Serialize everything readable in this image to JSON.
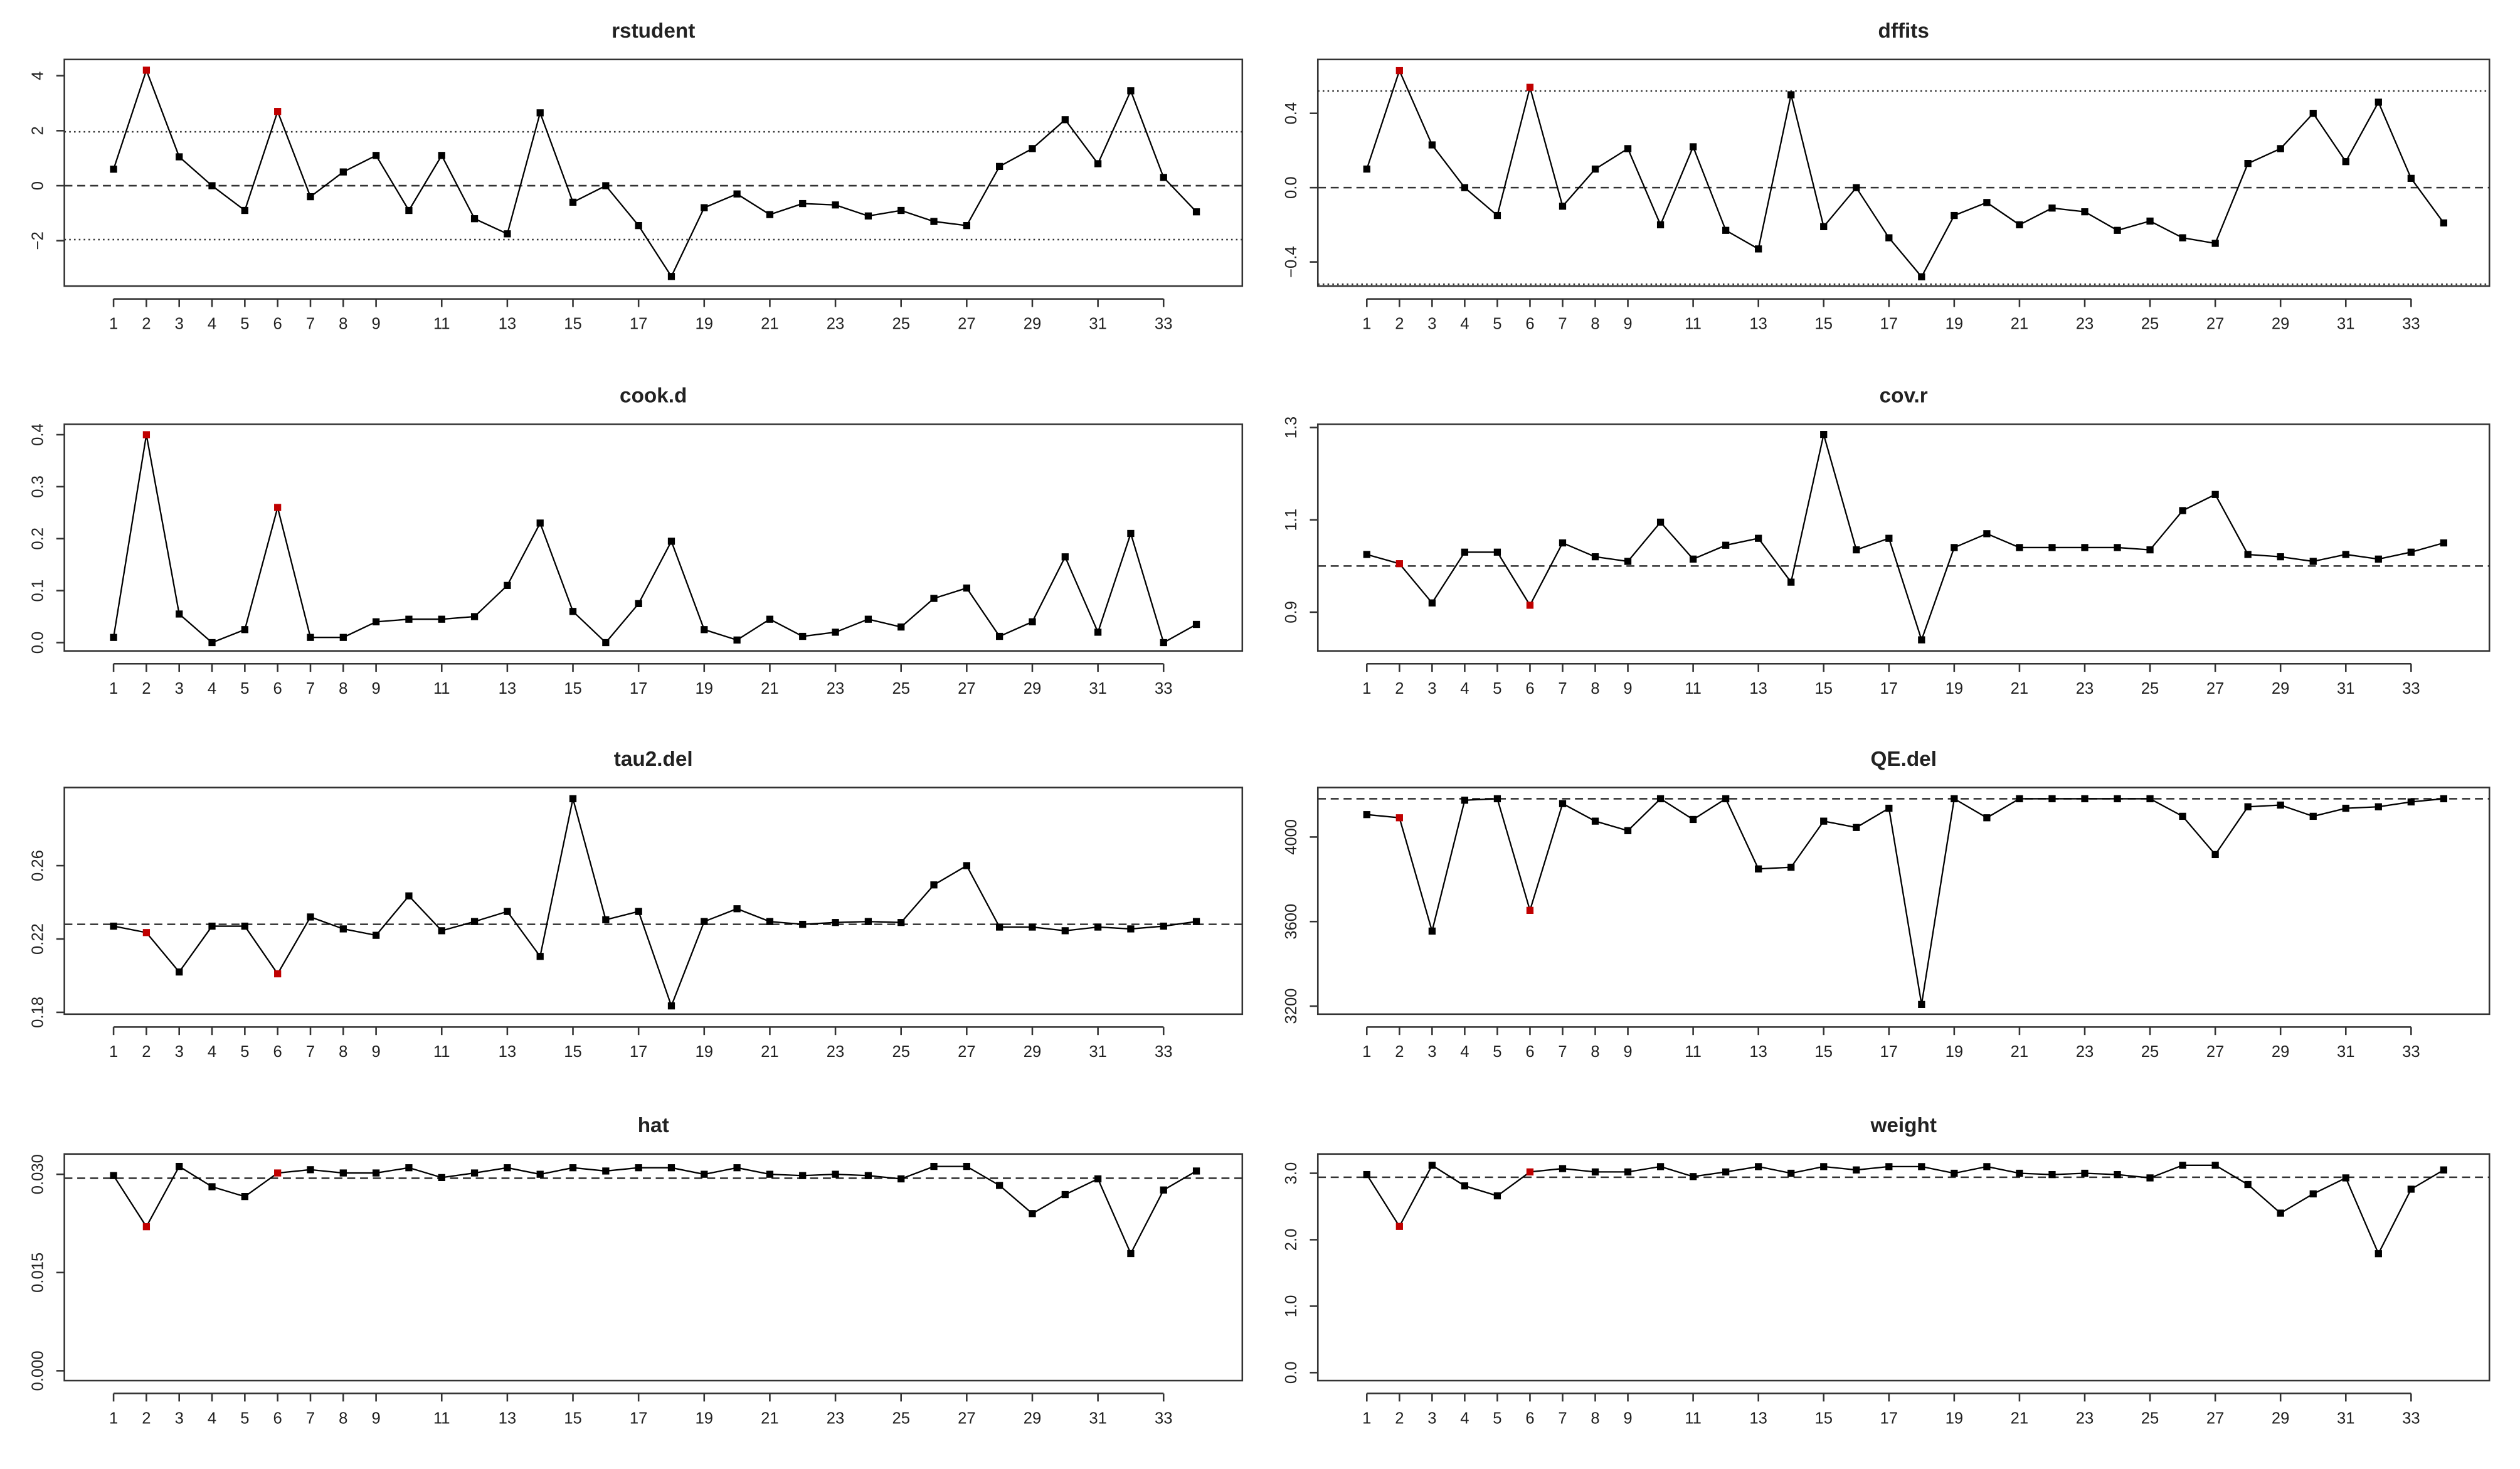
{
  "chart_data": [
    {
      "type": "line",
      "title": "rstudent",
      "color": "#000000",
      "highlight_x": [
        2,
        6
      ],
      "highlight_color": "#c00000",
      "x": [
        1,
        2,
        3,
        4,
        5,
        6,
        7,
        8,
        9,
        10,
        11,
        12,
        13,
        14,
        15,
        16,
        17,
        18,
        19,
        20,
        21,
        22,
        23,
        24,
        25,
        26,
        27,
        28,
        29,
        30,
        31,
        32,
        33,
        34
      ],
      "values": [
        0.6,
        4.2,
        1.05,
        0.0,
        -0.9,
        2.7,
        -0.4,
        0.5,
        1.1,
        -0.9,
        1.1,
        -1.2,
        -1.75,
        2.65,
        -0.6,
        0.0,
        -1.45,
        -3.3,
        -0.8,
        -0.3,
        -1.05,
        -0.65,
        -0.7,
        -1.1,
        -0.9,
        -1.3,
        -1.45,
        0.7,
        1.35,
        2.4,
        0.8,
        3.45,
        0.3,
        -0.95
      ],
      "xlim": [
        -0.5,
        35.4
      ],
      "xticks": [
        1,
        2,
        3,
        4,
        5,
        6,
        7,
        8,
        9,
        11,
        13,
        15,
        17,
        19,
        21,
        23,
        25,
        27,
        29,
        31,
        33
      ],
      "ylim": [
        -3.65,
        4.59
      ],
      "yticks": [
        {
          "value": -2,
          "label": "−2"
        },
        0,
        2,
        4
      ],
      "hlines": [
        {
          "value": 0,
          "style": "dashed"
        },
        {
          "value": 1.96,
          "style": "dotted"
        },
        {
          "value": -1.96,
          "style": "dotted"
        }
      ]
    },
    {
      "type": "line",
      "title": "dffits",
      "color": "#000000",
      "highlight_x": [
        2,
        6
      ],
      "highlight_color": "#c00000",
      "x": [
        1,
        2,
        3,
        4,
        5,
        6,
        7,
        8,
        9,
        10,
        11,
        12,
        13,
        14,
        15,
        16,
        17,
        18,
        19,
        20,
        21,
        22,
        23,
        24,
        25,
        26,
        27,
        28,
        29,
        30,
        31,
        32,
        33,
        34
      ],
      "values": [
        0.1,
        0.63,
        0.23,
        0.0,
        -0.15,
        0.54,
        -0.1,
        0.1,
        0.21,
        -0.2,
        0.22,
        -0.23,
        -0.33,
        0.5,
        -0.21,
        0.0,
        -0.27,
        -0.48,
        -0.15,
        -0.08,
        -0.2,
        -0.11,
        -0.13,
        -0.23,
        -0.18,
        -0.27,
        -0.3,
        0.13,
        0.21,
        0.4,
        0.14,
        0.46,
        0.05,
        -0.19
      ],
      "xlim": [
        -0.5,
        35.4
      ],
      "xticks": [
        1,
        2,
        3,
        4,
        5,
        6,
        7,
        8,
        9,
        11,
        13,
        15,
        17,
        19,
        21,
        23,
        25,
        27,
        29,
        31,
        33
      ],
      "ylim": [
        -0.53,
        0.69
      ],
      "yticks": [
        {
          "value": -0.4,
          "label": "−0.4"
        },
        {
          "value": 0,
          "label": "0.0"
        },
        0.4
      ],
      "hlines": [
        {
          "value": 0,
          "style": "dashed"
        },
        {
          "value": 0.52,
          "style": "dotted"
        },
        {
          "value": -0.52,
          "style": "dotted"
        }
      ]
    },
    {
      "type": "line",
      "title": "cook.d",
      "color": "#000000",
      "highlight_x": [
        2,
        6
      ],
      "highlight_color": "#c00000",
      "x": [
        1,
        2,
        3,
        4,
        5,
        6,
        7,
        8,
        9,
        10,
        11,
        12,
        13,
        14,
        15,
        16,
        17,
        18,
        19,
        20,
        21,
        22,
        23,
        24,
        25,
        26,
        27,
        28,
        29,
        30,
        31,
        32,
        33,
        34
      ],
      "values": [
        0.01,
        0.4,
        0.055,
        0.0,
        0.025,
        0.26,
        0.01,
        0.01,
        0.04,
        0.045,
        0.045,
        0.05,
        0.11,
        0.23,
        0.06,
        0.0,
        0.075,
        0.195,
        0.025,
        0.005,
        0.045,
        0.012,
        0.02,
        0.045,
        0.03,
        0.085,
        0.105,
        0.012,
        0.04,
        0.165,
        0.02,
        0.21,
        0.0,
        0.035
      ],
      "xlim": [
        -0.5,
        35.4
      ],
      "xticks": [
        1,
        2,
        3,
        4,
        5,
        6,
        7,
        8,
        9,
        11,
        13,
        15,
        17,
        19,
        21,
        23,
        25,
        27,
        29,
        31,
        33
      ],
      "ylim": [
        -0.016,
        0.42
      ],
      "yticks": [
        {
          "value": 0,
          "label": "0.0"
        },
        0.1,
        0.2,
        0.3,
        0.4
      ],
      "hlines": []
    },
    {
      "type": "line",
      "title": "cov.r",
      "color": "#000000",
      "highlight_x": [
        2,
        6
      ],
      "highlight_color": "#c00000",
      "x": [
        1,
        2,
        3,
        4,
        5,
        6,
        7,
        8,
        9,
        10,
        11,
        12,
        13,
        14,
        15,
        16,
        17,
        18,
        19,
        20,
        21,
        22,
        23,
        24,
        25,
        26,
        27,
        28,
        29,
        30,
        31,
        32,
        33,
        34
      ],
      "values": [
        1.025,
        1.005,
        0.92,
        1.03,
        1.03,
        0.915,
        1.05,
        1.02,
        1.01,
        1.095,
        1.015,
        1.045,
        1.06,
        0.965,
        1.285,
        1.035,
        1.06,
        0.84,
        1.04,
        1.07,
        1.04,
        1.04,
        1.04,
        1.04,
        1.035,
        1.12,
        1.155,
        1.025,
        1.02,
        1.01,
        1.025,
        1.015,
        1.03,
        1.05
      ],
      "xlim": [
        -0.5,
        35.4
      ],
      "xticks": [
        1,
        2,
        3,
        4,
        5,
        6,
        7,
        8,
        9,
        11,
        13,
        15,
        17,
        19,
        21,
        23,
        25,
        27,
        29,
        31,
        33
      ],
      "ylim": [
        0.816,
        1.307
      ],
      "yticks": [
        0.9,
        1.1,
        1.3
      ],
      "hlines": [
        {
          "value": 1,
          "style": "dashed"
        }
      ]
    },
    {
      "type": "line",
      "title": "tau2.del",
      "color": "#000000",
      "highlight_x": [
        2,
        6
      ],
      "highlight_color": "#c00000",
      "x": [
        1,
        2,
        3,
        4,
        5,
        6,
        7,
        8,
        9,
        10,
        11,
        12,
        13,
        14,
        15,
        16,
        17,
        18,
        19,
        20,
        21,
        22,
        23,
        24,
        25,
        26,
        27,
        28,
        29,
        30,
        31,
        32,
        33,
        34
      ],
      "values": [
        0.227,
        0.2235,
        0.202,
        0.227,
        0.227,
        0.201,
        0.232,
        0.2255,
        0.222,
        0.2435,
        0.2245,
        0.2295,
        0.235,
        0.2105,
        0.2965,
        0.2305,
        0.235,
        0.1835,
        0.2295,
        0.2365,
        0.2295,
        0.228,
        0.229,
        0.2295,
        0.229,
        0.2495,
        0.26,
        0.2265,
        0.2265,
        0.2245,
        0.2265,
        0.2255,
        0.227,
        0.2295
      ],
      "xlim": [
        -0.5,
        35.4
      ],
      "xticks": [
        1,
        2,
        3,
        4,
        5,
        6,
        7,
        8,
        9,
        11,
        13,
        15,
        17,
        19,
        21,
        23,
        25,
        27,
        29,
        31,
        33
      ],
      "ylim": [
        0.179,
        0.3026
      ],
      "yticks": [
        0.18,
        0.22,
        0.26
      ],
      "hlines": [
        {
          "value": 0.228,
          "style": "dashed"
        }
      ]
    },
    {
      "type": "line",
      "title": "QE.del",
      "color": "#000000",
      "highlight_x": [
        2,
        6
      ],
      "highlight_color": "#c00000",
      "x": [
        1,
        2,
        3,
        4,
        5,
        6,
        7,
        8,
        9,
        10,
        11,
        12,
        13,
        14,
        15,
        16,
        17,
        18,
        19,
        20,
        21,
        22,
        23,
        24,
        25,
        26,
        27,
        28,
        29,
        30,
        31,
        32,
        33,
        34
      ],
      "values": [
        4106,
        4091,
        3555,
        4174,
        4181,
        3653,
        4158,
        4075,
        4030,
        4181,
        4083,
        4181,
        3849,
        3857,
        4075,
        4045,
        4136,
        3208,
        4181,
        4091,
        4181,
        4181,
        4181,
        4181,
        4181,
        4098,
        3917,
        4143,
        4151,
        4098,
        4136,
        4143,
        4166,
        4181
      ],
      "xlim": [
        -0.5,
        35.4
      ],
      "xticks": [
        1,
        2,
        3,
        4,
        5,
        6,
        7,
        8,
        9,
        11,
        13,
        15,
        17,
        19,
        21,
        23,
        25,
        27,
        29,
        31,
        33
      ],
      "ylim": [
        3162,
        4234
      ],
      "yticks": [
        3200,
        3600,
        4000
      ],
      "hlines": [
        {
          "value": 4181,
          "style": "dashed"
        }
      ]
    },
    {
      "type": "line",
      "title": "hat",
      "color": "#000000",
      "highlight_x": [
        2,
        6
      ],
      "highlight_color": "#c00000",
      "x": [
        1,
        2,
        3,
        4,
        5,
        6,
        7,
        8,
        9,
        10,
        11,
        12,
        13,
        14,
        15,
        16,
        17,
        18,
        19,
        20,
        21,
        22,
        23,
        24,
        25,
        26,
        27,
        28,
        29,
        30,
        31,
        32,
        33,
        34
      ],
      "values": [
        0.0298,
        0.022,
        0.0312,
        0.0281,
        0.0266,
        0.0302,
        0.0307,
        0.0302,
        0.0302,
        0.031,
        0.0295,
        0.0302,
        0.031,
        0.03,
        0.031,
        0.0305,
        0.031,
        0.031,
        0.03,
        0.031,
        0.03,
        0.0298,
        0.03,
        0.0298,
        0.0293,
        0.0312,
        0.0312,
        0.0283,
        0.024,
        0.0269,
        0.0293,
        0.0179,
        0.0276,
        0.0305
      ],
      "xlim": [
        -0.5,
        35.4
      ],
      "xticks": [
        1,
        2,
        3,
        4,
        5,
        6,
        7,
        8,
        9,
        11,
        13,
        15,
        17,
        19,
        21,
        23,
        25,
        27,
        29,
        31,
        33
      ],
      "ylim": [
        -0.0015,
        0.0331
      ],
      "yticks": [
        {
          "value": 0,
          "label": "0.000"
        },
        0.015,
        {
          "value": 0.03,
          "label": "0.030"
        }
      ],
      "hlines": [
        {
          "value": 0.0294,
          "style": "dashed"
        }
      ]
    },
    {
      "type": "line",
      "title": "weight",
      "color": "#000000",
      "highlight_x": [
        2,
        6
      ],
      "highlight_color": "#c00000",
      "x": [
        1,
        2,
        3,
        4,
        5,
        6,
        7,
        8,
        9,
        10,
        11,
        12,
        13,
        14,
        15,
        16,
        17,
        18,
        19,
        20,
        21,
        22,
        23,
        24,
        25,
        26,
        27,
        28,
        29,
        30,
        31,
        32,
        33,
        34
      ],
      "values": [
        2.98,
        2.2,
        3.12,
        2.81,
        2.66,
        3.02,
        3.07,
        3.02,
        3.02,
        3.1,
        2.95,
        3.02,
        3.1,
        3.0,
        3.1,
        3.05,
        3.1,
        3.1,
        3.0,
        3.1,
        3.0,
        2.98,
        3.0,
        2.98,
        2.93,
        3.12,
        3.12,
        2.83,
        2.4,
        2.69,
        2.93,
        1.79,
        2.76,
        3.05
      ],
      "xlim": [
        -0.5,
        35.4
      ],
      "xticks": [
        1,
        2,
        3,
        4,
        5,
        6,
        7,
        8,
        9,
        11,
        13,
        15,
        17,
        19,
        21,
        23,
        25,
        27,
        29,
        31,
        33
      ],
      "ylim": [
        -0.12,
        3.29
      ],
      "yticks": [
        {
          "value": 0,
          "label": "0.0"
        },
        {
          "value": 1,
          "label": "1.0"
        },
        {
          "value": 2,
          "label": "2.0"
        },
        {
          "value": 3,
          "label": "3.0"
        }
      ],
      "hlines": [
        {
          "value": 2.94,
          "style": "dashed"
        }
      ]
    }
  ]
}
